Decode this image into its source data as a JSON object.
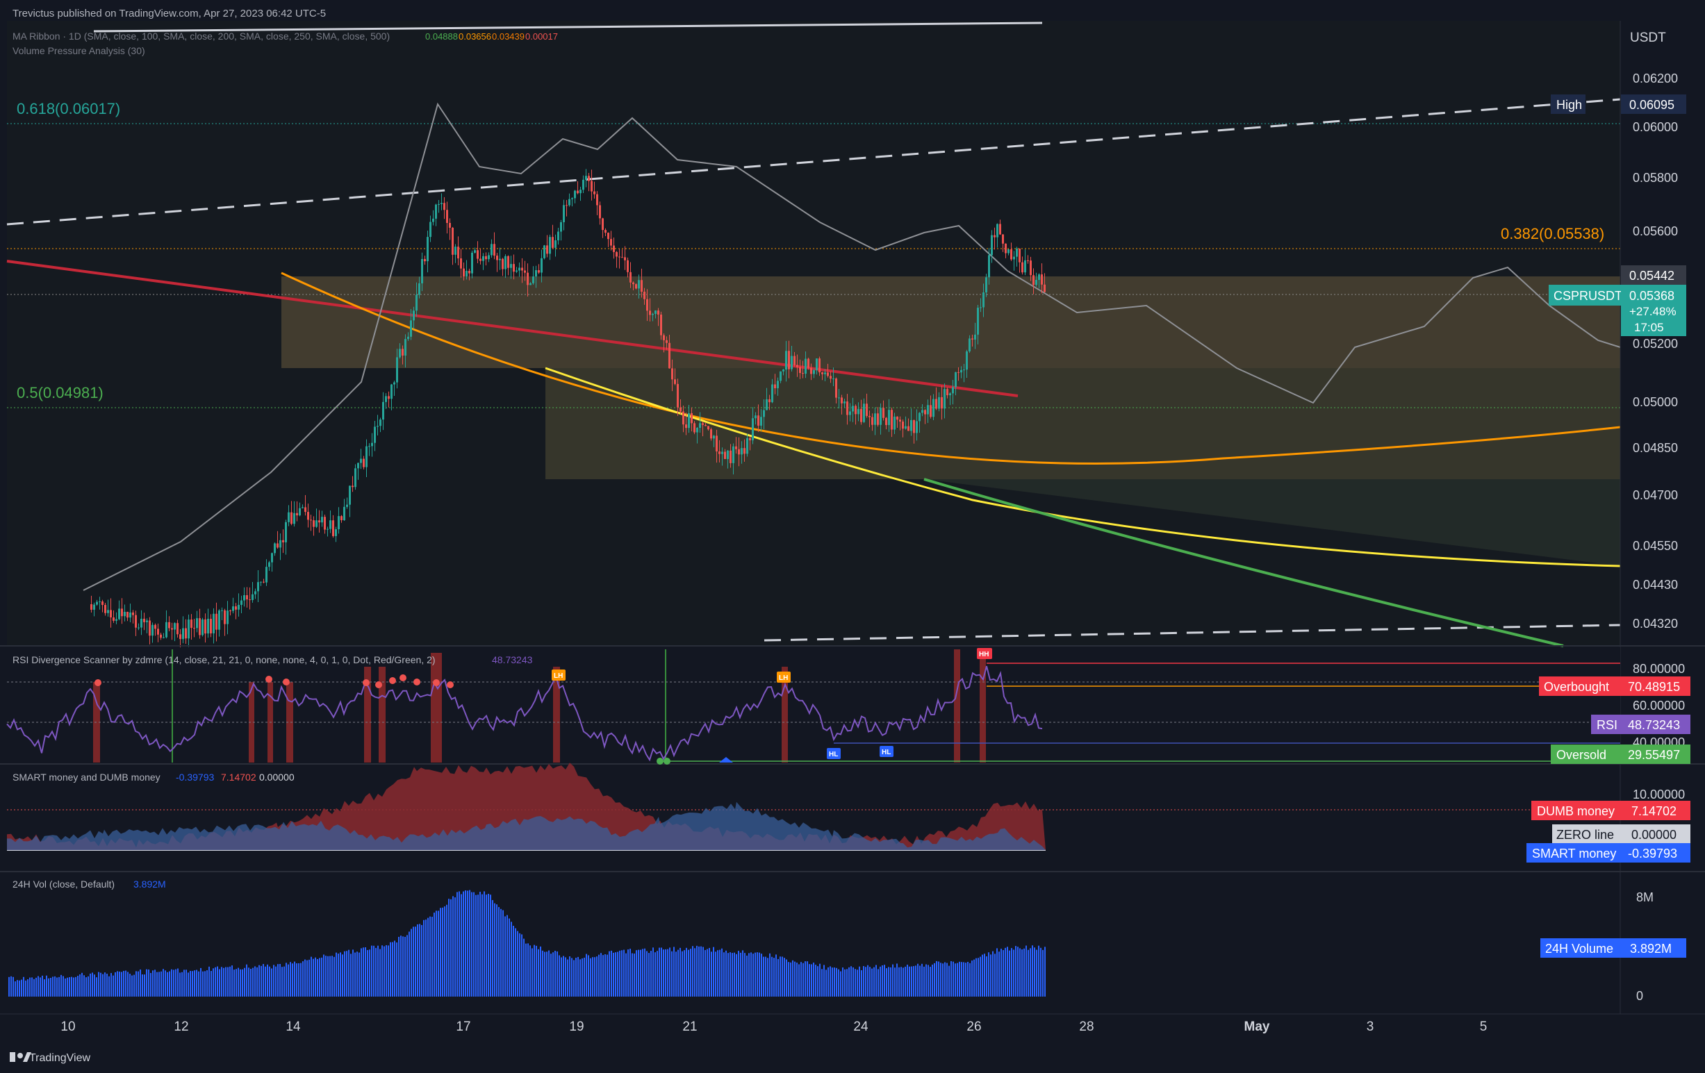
{
  "header": {
    "publish_line": "Trevictus published on TradingView.com, Apr 27, 2023 06:42 UTC-5",
    "currency": "USDT"
  },
  "main_pane": {
    "indicator_1": "MA Ribbon · 1D (SMA, close, 100, SMA, close, 200, SMA, close, 250, SMA, close, 500)",
    "indicator_1_values": [
      "0.04888",
      "0.03656",
      "0.03439",
      "0.00017"
    ],
    "indicator_2": "Volume Pressure Analysis (30)",
    "fib_618": "0.618(0.06017)",
    "fib_5": "0.5(0.04981)",
    "fib_382": "0.382(0.05538)",
    "price_ticks": [
      "0.06200",
      "0.06000",
      "0.05800",
      "0.05600",
      "0.05200",
      "0.05000",
      "0.04850",
      "0.04700",
      "0.04550",
      "0.04430",
      "0.04320"
    ],
    "high_label": "High",
    "high_value": "0.06095",
    "level_label": "0.05442",
    "symbol": "CSPRUSDT",
    "last_price": "0.05368",
    "change": "+27.48%",
    "countdown": "17:05"
  },
  "rsi_pane": {
    "title": "RSI Divergence Scanner by zdmre (14, close, 21, 21, 0, none, none, 4, 0, 1, 0, Dot, Red/Green, 2)",
    "title_value": "48.73243",
    "ticks": [
      "80.00000",
      "60.00000",
      "40.00000"
    ],
    "overbought_label": "Overbought",
    "overbought_value": "70.48915",
    "rsi_label": "RSI",
    "rsi_value": "48.73243",
    "oversold_label": "Oversold",
    "oversold_value": "29.55497",
    "markers": [
      "LH",
      "LH",
      "HH",
      "HL",
      "HL"
    ]
  },
  "smart_pane": {
    "title": "SMART money and DUMB money",
    "values": [
      "-0.39793",
      "7.14702",
      "0.00000"
    ],
    "tick": "10.00000",
    "dumb_label": "DUMB money",
    "dumb_value": "7.14702",
    "zero_label": "ZERO line",
    "zero_value": "0.00000",
    "smart_label": "SMART money",
    "smart_value": "-0.39793"
  },
  "vol_pane": {
    "title": "24H Vol (close, Default)",
    "title_value": "3.892M",
    "ticks": [
      "8M",
      "0"
    ],
    "vol_label": "24H Volume",
    "vol_value": "3.892M"
  },
  "time_axis": [
    "10",
    "12",
    "14",
    "17",
    "19",
    "21",
    "24",
    "26",
    "28",
    "May",
    "3",
    "5"
  ],
  "footer": {
    "brand": "TradingView"
  },
  "colors": {
    "bg": "#131722",
    "up": "#26a69a",
    "down": "#ef5350",
    "fib618": "#26a69a",
    "fib382": "#ff9800",
    "rsi": "#7e57c2",
    "overbought": "#f23645",
    "oversold": "#4caf50",
    "smart": "#2962ff",
    "vol": "#2962ff"
  }
}
